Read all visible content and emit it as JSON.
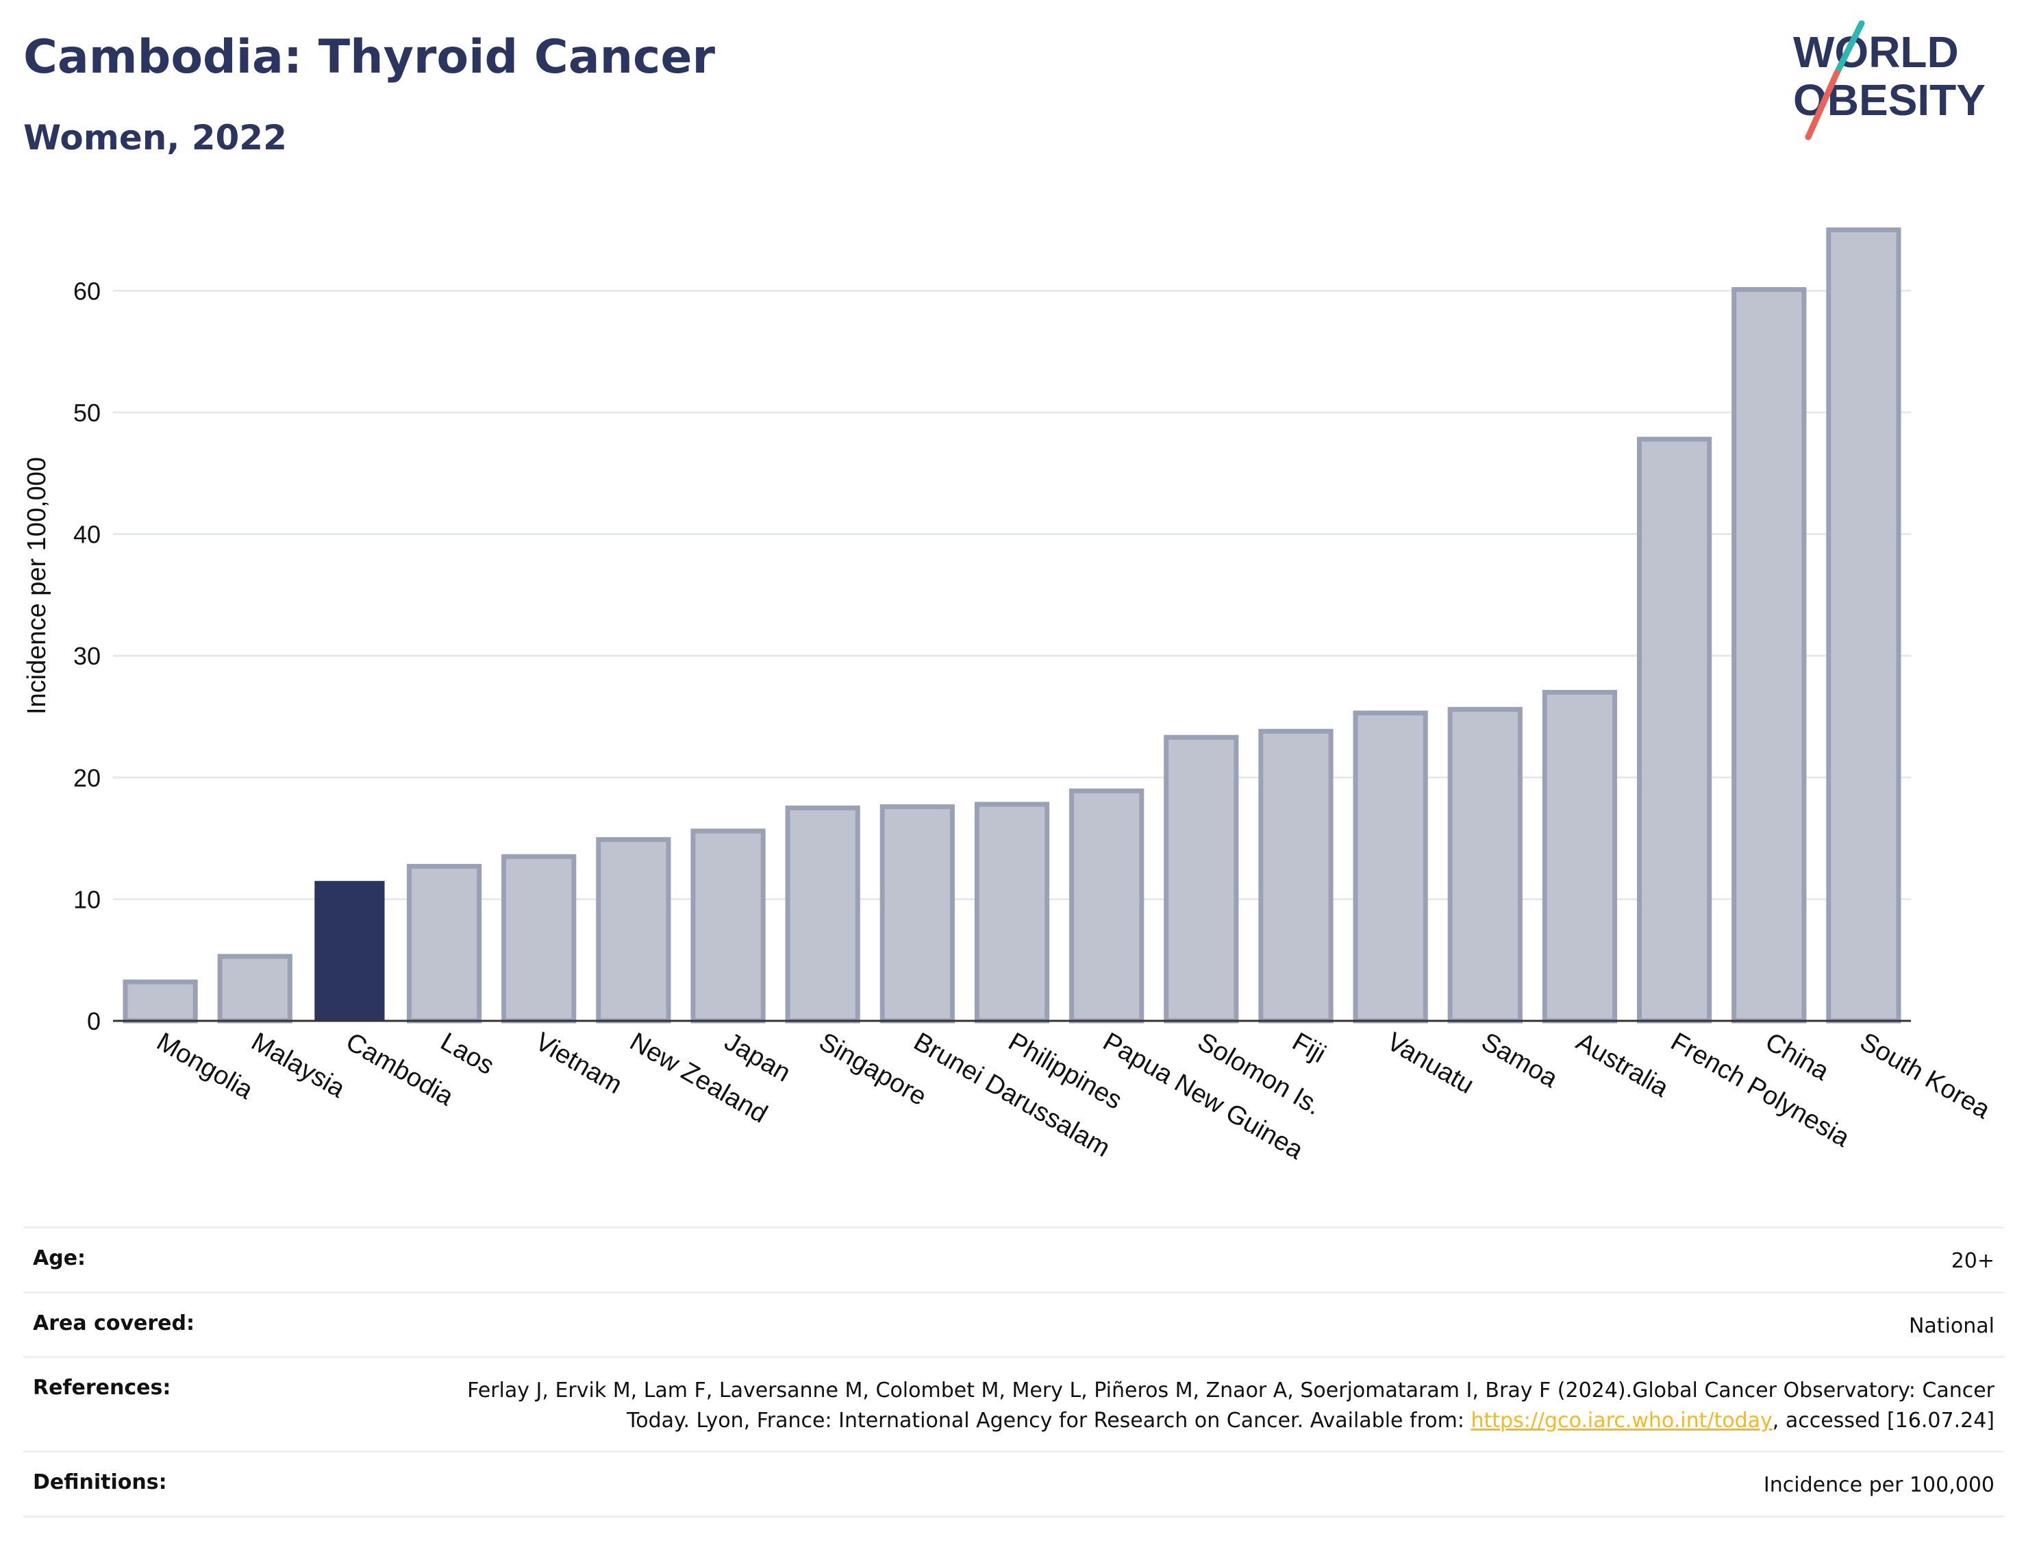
{
  "header": {
    "title": "Cambodia: Thyroid Cancer",
    "subtitle": "Women, 2022"
  },
  "logo": {
    "line1": "WORLD",
    "line2": "OBESITY",
    "slash_colors": [
      "#2cb7b0",
      "#e8645a"
    ]
  },
  "colors": {
    "highlight_bar": "#2b3560",
    "bar_fill": "#bfc3cf",
    "bar_stroke": "#9aa0b6",
    "grid": "#e6e8ee",
    "axis": "#333333",
    "text": "#2b3560",
    "link": "#f2b825"
  },
  "chart_data": {
    "type": "bar",
    "title": "Cambodia: Thyroid Cancer",
    "subtitle": "Women, 2022",
    "xlabel": "",
    "ylabel": "Incidence per 100,000",
    "ylim": [
      0,
      67
    ],
    "yticks": [
      0,
      10,
      20,
      30,
      40,
      50,
      60
    ],
    "grid": true,
    "highlight": "Cambodia",
    "categories": [
      "Mongolia",
      "Malaysia",
      "Cambodia",
      "Laos",
      "Vietnam",
      "New Zealand",
      "Japan",
      "Singapore",
      "Brunei Darussalam",
      "Philippines",
      "Papua New Guinea",
      "Solomon Is.",
      "Fiji",
      "Vanuatu",
      "Samoa",
      "Australia",
      "French Polynesia",
      "China",
      "South Korea"
    ],
    "values": [
      3.2,
      5.3,
      11.5,
      12.7,
      13.5,
      14.9,
      15.6,
      17.5,
      17.6,
      17.8,
      18.9,
      23.3,
      23.8,
      25.3,
      25.6,
      27.0,
      47.8,
      60.1,
      65.0
    ]
  },
  "info": {
    "age_label": "Age:",
    "age_value": "20+",
    "area_label": "Area covered:",
    "area_value": "National",
    "references_label": "References:",
    "references_text_1": "Ferlay J, Ervik M, Lam F, Laversanne M, Colombet M, Mery L, Piñeros M, Znaor A, Soerjomataram I, Bray F (2024).Global Cancer Observatory: Cancer Today. Lyon, France: International Agency for Research on Cancer. Available from: ",
    "references_link": "https://gco.iarc.who.int/today",
    "references_text_2": ", accessed [16.07.24]",
    "definitions_label": "Definitions:",
    "definitions_value": "Incidence per 100,000"
  }
}
